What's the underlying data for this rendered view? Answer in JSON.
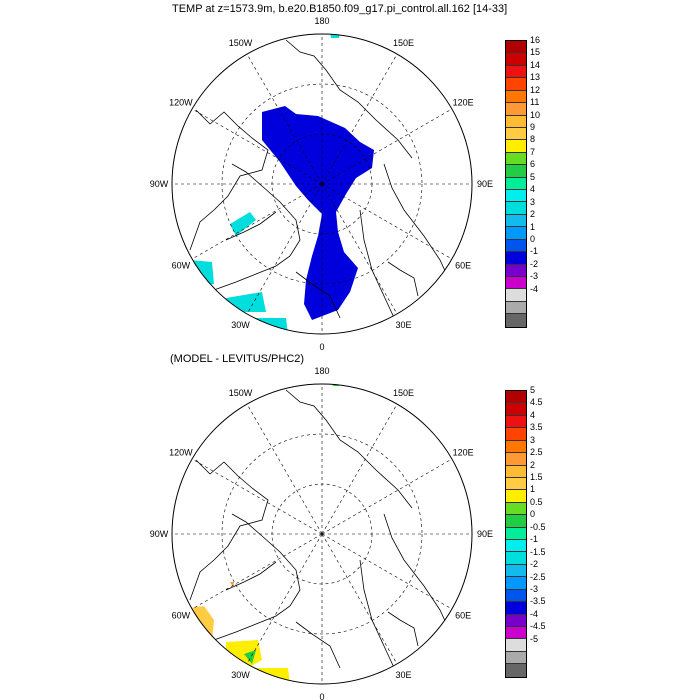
{
  "panel_top": {
    "title": "TEMP at z=1573.9m, b.e20.B1850.f09_g17.pi_control.all.162 [14-33]",
    "colorbar": {
      "colors": [
        "#b00000",
        "#cc0000",
        "#ee1111",
        "#ff4400",
        "#ff7700",
        "#ff9933",
        "#ffbb33",
        "#ffcc44",
        "#ffee00",
        "#66dd22",
        "#22cc44",
        "#00ee99",
        "#00eeee",
        "#00dddd",
        "#11bbee",
        "#0099ff",
        "#0055ee",
        "#0000dd",
        "#7700cc",
        "#cc00cc",
        "#dddddd",
        "#aaaaaa",
        "#666666"
      ],
      "labels": [
        "16",
        "15",
        "14",
        "13",
        "12",
        "11",
        "10",
        "9",
        "8",
        "7",
        "6",
        "5",
        "4",
        "3",
        "2",
        "1",
        "0",
        "-1",
        "-2",
        "-3",
        "-4"
      ]
    }
  },
  "panel_bottom": {
    "title": "(MODEL - LEVITUS/PHC2)",
    "colorbar": {
      "colors": [
        "#b00000",
        "#cc0000",
        "#ee1111",
        "#ff4400",
        "#ff7700",
        "#ff9933",
        "#ffbb33",
        "#ffcc44",
        "#ffee00",
        "#66dd22",
        "#22cc44",
        "#00ee99",
        "#00eeee",
        "#00dddd",
        "#11bbee",
        "#0099ff",
        "#0055ee",
        "#0000dd",
        "#7700cc",
        "#cc00cc",
        "#dddddd",
        "#aaaaaa",
        "#666666"
      ],
      "labels": [
        "5",
        "4.5",
        "4",
        "3.5",
        "3",
        "2.5",
        "2",
        "1.5",
        "1",
        "0.5",
        "0",
        "-0.5",
        "-1",
        "-1.5",
        "-2",
        "-2.5",
        "-3",
        "-3.5",
        "-4",
        "-4.5",
        "-5"
      ]
    }
  },
  "map": {
    "longitude_labels": [
      {
        "text": "180",
        "lon": 180
      },
      {
        "text": "150E",
        "lon": 150
      },
      {
        "text": "120E",
        "lon": 120
      },
      {
        "text": "90E",
        "lon": 90
      },
      {
        "text": "60E",
        "lon": 60
      },
      {
        "text": "30E",
        "lon": 30
      },
      {
        "text": "0",
        "lon": 0
      },
      {
        "text": "30W",
        "lon": -30
      },
      {
        "text": "60W",
        "lon": -60
      },
      {
        "text": "90W",
        "lon": -90
      },
      {
        "text": "120W",
        "lon": -120
      },
      {
        "text": "150W",
        "lon": -150
      }
    ]
  }
}
